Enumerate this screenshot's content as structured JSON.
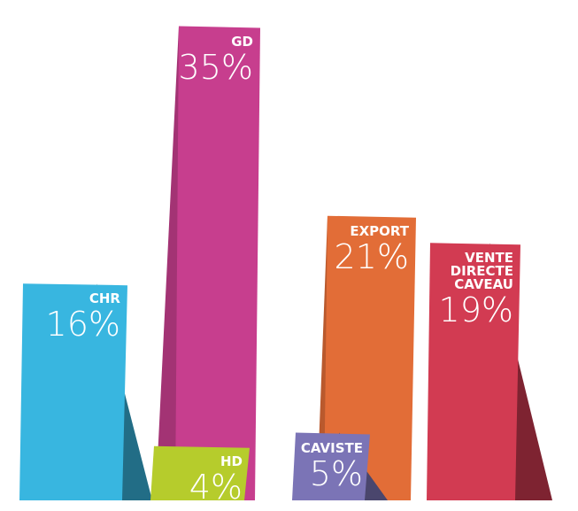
{
  "chart_data": {
    "type": "tent-bar",
    "categories": [
      "CHR",
      "GD",
      "HD",
      "CAVISTE",
      "EXPORT",
      "VENTE DIRECTE CAVEAU"
    ],
    "values": [
      16,
      35,
      4,
      5,
      21,
      19
    ],
    "value_labels": [
      "16%",
      "35%",
      "4%",
      "5%",
      "21%",
      "19%"
    ],
    "colors": [
      "#38b6e0",
      "#c73e8e",
      "#b6cc2c",
      "#7b74b6",
      "#e26d37",
      "#d23b52"
    ]
  }
}
